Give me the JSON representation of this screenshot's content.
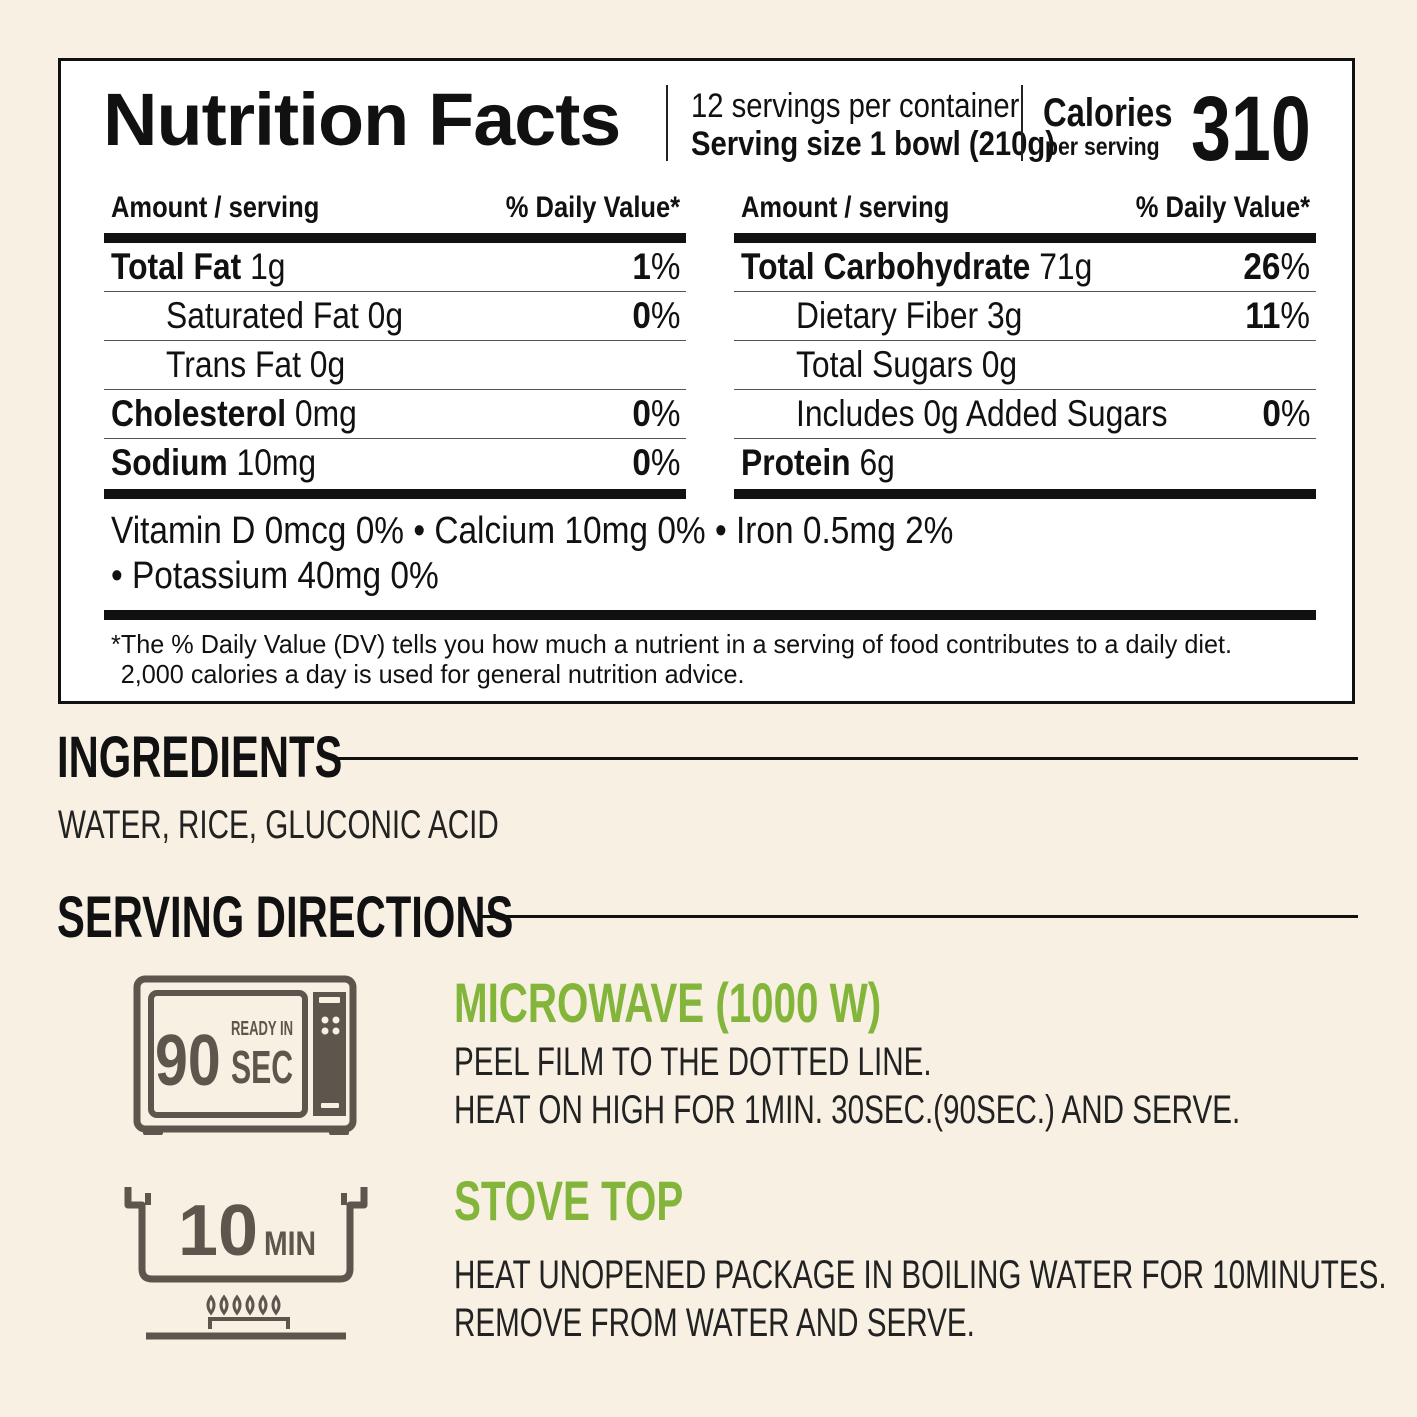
{
  "nutrition": {
    "title": "Nutrition Facts",
    "servings_per_container": "12 servings per container",
    "serving_size": "Serving size 1 bowl (210g)",
    "calories_label": "Calories",
    "per_serving_label": "per serving",
    "calories_value": "310",
    "column_header_left": "Amount / serving",
    "column_header_right": "% Daily Value*",
    "left_rows": [
      {
        "name_bold": "Total Fat",
        "amount": " 1g",
        "pct_bold": "1",
        "pct_sign": "%",
        "indent": false
      },
      {
        "name_bold": "",
        "amount": "Saturated Fat 0g",
        "pct_bold": "0",
        "pct_sign": "%",
        "indent": true
      },
      {
        "name_bold": "",
        "amount": "Trans Fat 0g",
        "pct_bold": "",
        "pct_sign": "",
        "indent": true
      },
      {
        "name_bold": "Cholesterol",
        "amount": " 0mg",
        "pct_bold": "0",
        "pct_sign": "%",
        "indent": false
      },
      {
        "name_bold": "Sodium",
        "amount": " 10mg",
        "pct_bold": "0",
        "pct_sign": "%",
        "indent": false
      }
    ],
    "right_rows": [
      {
        "name_bold": "Total Carbohydrate",
        "amount": " 71g",
        "pct_bold": "26",
        "pct_sign": "%",
        "indent": false
      },
      {
        "name_bold": "",
        "amount": "Dietary Fiber 3g",
        "pct_bold": "11",
        "pct_sign": "%",
        "indent": true
      },
      {
        "name_bold": "",
        "amount": "Total Sugars 0g",
        "pct_bold": "",
        "pct_sign": "",
        "indent": true
      },
      {
        "name_bold": "",
        "amount": "Includes 0g Added Sugars",
        "pct_bold": "0",
        "pct_sign": "%",
        "indent": true
      },
      {
        "name_bold": "Protein",
        "amount": " 6g",
        "pct_bold": "",
        "pct_sign": "",
        "indent": false
      }
    ],
    "vitamins_line1": "Vitamin D 0mcg 0% • Calcium 10mg 0% • Iron 0.5mg 2%",
    "vitamins_line2": "• Potassium 40mg 0%",
    "footnote_line1": "*The % Daily Value (DV) tells you how much a nutrient in a serving of food contributes to a daily diet.",
    "footnote_line2": "2,000 calories a day is used for general nutrition advice."
  },
  "ingredients": {
    "title": "INGREDIENTS",
    "text": "WATER, RICE, GLUCONIC ACID"
  },
  "serving_directions": {
    "title": "SERVING DIRECTIONS",
    "microwave": {
      "title": "MICROWAVE (1000 W)",
      "lines": [
        "PEEL FILM TO THE DOTTED LINE.",
        "HEAT ON HIGH FOR 1MIN. 30SEC.(90SEC.) AND SERVE."
      ],
      "icon": "microwave-icon",
      "icon_number": "90",
      "icon_top": "READY IN",
      "icon_unit": "SEC"
    },
    "stove": {
      "title": "STOVE TOP",
      "lines": [
        "HEAT UNOPENED PACKAGE IN BOILING WATER FOR 10MINUTES.",
        "REMOVE FROM WATER AND SERVE."
      ],
      "icon": "stove-pot-icon",
      "icon_number": "10",
      "icon_unit": "MIN"
    }
  },
  "colors": {
    "background": "#f7f0e3",
    "accent_green": "#84b53b",
    "icon_gray": "#5c564d"
  }
}
